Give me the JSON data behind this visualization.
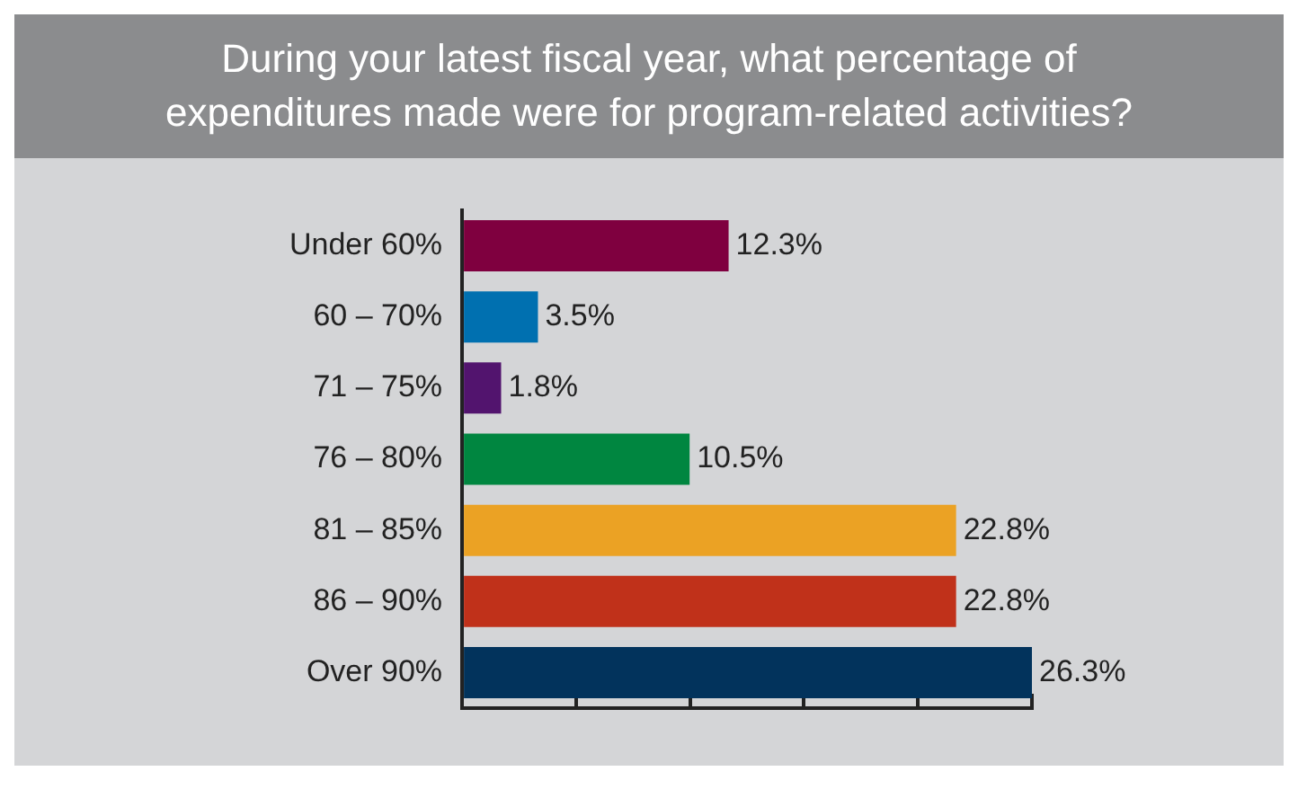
{
  "chart_data": {
    "type": "bar",
    "orientation": "horizontal",
    "title": "During your latest fiscal year, what percentage of expenditures made were for program-related activities?",
    "categories": [
      "Under 60%",
      "60 – 70%",
      "71 – 75%",
      "76 – 80%",
      "81 – 85%",
      "86 – 90%",
      "Over 90%"
    ],
    "values": [
      12.3,
      3.5,
      1.8,
      10.5,
      22.8,
      22.8,
      26.3
    ],
    "value_labels": [
      "12.3%",
      "3.5%",
      "1.8%",
      "10.5%",
      "22.8%",
      "22.8%",
      "26.3%"
    ],
    "colors": [
      "#7f003f",
      "#0070b0",
      "#52146e",
      "#008640",
      "#eba224",
      "#c0311a",
      "#02335c"
    ],
    "xlim": [
      0,
      26.3
    ],
    "xticks": [
      {
        "value": 0,
        "label": null
      },
      {
        "value": 5.26,
        "label": null
      },
      {
        "value": 10.52,
        "label": null
      },
      {
        "value": 15.78,
        "label": null
      },
      {
        "value": 21.04,
        "label": null
      },
      {
        "value": 26.3,
        "label": null
      }
    ],
    "tick_labels": "y"
  }
}
